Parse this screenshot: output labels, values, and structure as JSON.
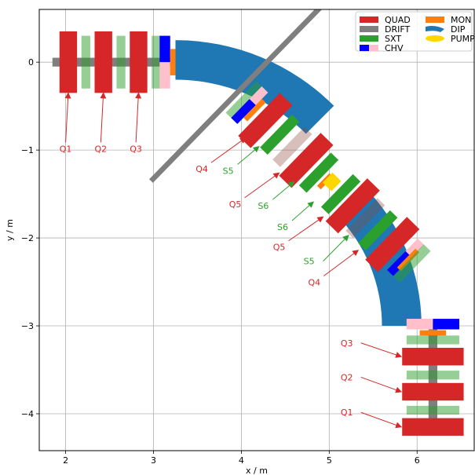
{
  "chart_data": {
    "type": "beamline-layout",
    "xlabel": "x / m",
    "ylabel": "y / m",
    "xlim": [
      1.7,
      6.65
    ],
    "ylim": [
      -4.42,
      0.6
    ],
    "xticks": [
      2,
      3,
      4,
      5,
      6
    ],
    "yticks": [
      0,
      -1,
      -2,
      -3,
      -4
    ],
    "grid": true,
    "legend_position": "top-right",
    "colors": {
      "QUAD": "#d62728",
      "DRIFT": "#7f7f7f",
      "SXT": "#2ca02c",
      "CHV_a": "#0000ff",
      "CHV_b": "#ffc0cb",
      "MON": "#ff7f0e",
      "DIP": "#1f77b4",
      "PUMP": "#ffd700",
      "label_red": "#d62728",
      "label_green": "#2ca02c"
    },
    "legend": [
      {
        "name": "QUAD",
        "kind": "QUAD"
      },
      {
        "name": "DRIFT",
        "kind": "DRIFT"
      },
      {
        "name": "SXT",
        "kind": "SXT"
      },
      {
        "name": "CHV",
        "kind": "CHV"
      },
      {
        "name": "MON",
        "kind": "MON"
      },
      {
        "name": "DIP",
        "kind": "DIP"
      },
      {
        "name": "PUMP",
        "kind": "PUMP"
      }
    ],
    "dipoles": [
      {
        "center": [
          3.25,
          -2.3
        ],
        "r_inner": 2.1,
        "r_outer": 2.55,
        "start_angle_deg": 90,
        "end_angle_deg": 45
      },
      {
        "center": [
          3.8,
          -3.0
        ],
        "r_inner": 1.8,
        "r_outer": 2.25,
        "start_angle_deg": 45,
        "end_angle_deg": 0
      }
    ],
    "top_line": {
      "y": 0,
      "drift_range": [
        1.85,
        3.25
      ],
      "elements": [
        {
          "kind": "QUAD",
          "x": 2.03,
          "length": 0.2,
          "width": 0.7
        },
        {
          "kind": "SXT",
          "x": 2.23,
          "length": 0.1,
          "width": 0.6,
          "alpha": 0.5
        },
        {
          "kind": "QUAD",
          "x": 2.43,
          "length": 0.2,
          "width": 0.7
        },
        {
          "kind": "SXT",
          "x": 2.63,
          "length": 0.1,
          "width": 0.6,
          "alpha": 0.5
        },
        {
          "kind": "QUAD",
          "x": 2.83,
          "length": 0.2,
          "width": 0.7
        },
        {
          "kind": "SXT",
          "x": 3.03,
          "length": 0.1,
          "width": 0.6,
          "alpha": 0.5
        },
        {
          "kind": "CHV_a",
          "x": 3.13,
          "length": 0.12,
          "width": 0.3,
          "offset": 0.15
        },
        {
          "kind": "CHV_b",
          "x": 3.13,
          "length": 0.12,
          "width": 0.3,
          "offset": -0.15
        },
        {
          "kind": "MON",
          "x": 3.22,
          "length": 0.06,
          "width": 0.3,
          "offset": 0
        }
      ]
    },
    "diagonal_line": {
      "start": [
        3.95,
        -0.35
      ],
      "end": [
        5.95,
        -2.3
      ],
      "elements": [
        {
          "kind": "DRIFT",
          "s": 0.0,
          "length": 2.8,
          "width": 0.06
        },
        {
          "kind": "SXT",
          "s": 0.12,
          "length": 0.5,
          "width": 0.11,
          "alpha": 0.5
        },
        {
          "kind": "CHV_b",
          "s": 0.2,
          "length": 0.3,
          "width": 0.1,
          "offset": -0.1
        },
        {
          "kind": "CHV_a",
          "s": 0.2,
          "length": 0.3,
          "width": 0.1,
          "offset": 0.1
        },
        {
          "kind": "MON",
          "s": 0.28,
          "length": 0.3,
          "width": 0.06,
          "offset": 0
        },
        {
          "kind": "QUAD",
          "s": 0.45,
          "length": 0.68,
          "width": 0.2
        },
        {
          "kind": "SXT",
          "s": 0.68,
          "length": 0.52,
          "width": 0.12
        },
        {
          "kind": "SXT",
          "s": 0.88,
          "length": 0.52,
          "width": 0.12,
          "alpha": 0.35,
          "tint": "#8c4a3b"
        },
        {
          "kind": "QUAD",
          "s": 1.1,
          "length": 0.68,
          "width": 0.2
        },
        {
          "kind": "SXT",
          "s": 1.3,
          "length": 0.52,
          "width": 0.12
        },
        {
          "kind": "MON",
          "s": 1.42,
          "length": 0.2,
          "width": 0.06,
          "offset": 0.02
        },
        {
          "kind": "PUMP",
          "s": 1.48,
          "length": 0.16,
          "width": 0.14,
          "offset": -0.03
        },
        {
          "kind": "SXT",
          "s": 1.65,
          "length": 0.52,
          "width": 0.12
        },
        {
          "kind": "QUAD",
          "s": 1.84,
          "length": 0.68,
          "width": 0.2
        },
        {
          "kind": "SXT",
          "s": 2.04,
          "length": 0.52,
          "width": 0.12,
          "alpha": 0.35,
          "tint": "#8c4a3b"
        },
        {
          "kind": "SXT",
          "s": 2.24,
          "length": 0.52,
          "width": 0.12
        },
        {
          "kind": "QUAD",
          "s": 2.47,
          "length": 0.68,
          "width": 0.2
        },
        {
          "kind": "CHV_b",
          "s": 2.68,
          "length": 0.3,
          "width": 0.1,
          "offset": -0.1
        },
        {
          "kind": "CHV_a",
          "s": 2.68,
          "length": 0.3,
          "width": 0.1,
          "offset": 0.1
        },
        {
          "kind": "MON",
          "s": 2.72,
          "length": 0.3,
          "width": 0.06,
          "offset": 0
        },
        {
          "kind": "SXT",
          "s": 2.78,
          "length": 0.5,
          "width": 0.11,
          "alpha": 0.5
        }
      ]
    },
    "bottom_line": {
      "x": 6.18,
      "drift_range": [
        -2.95,
        -4.2
      ],
      "elements": [
        {
          "kind": "CHV_b",
          "y": -2.98,
          "length": 0.12,
          "width": 0.3,
          "offset": -0.15
        },
        {
          "kind": "CHV_a",
          "y": -2.98,
          "length": 0.12,
          "width": 0.3,
          "offset": 0.15
        },
        {
          "kind": "MON",
          "y": -3.08,
          "length": 0.06,
          "width": 0.3,
          "offset": 0
        },
        {
          "kind": "SXT",
          "y": -3.16,
          "length": 0.1,
          "width": 0.6,
          "alpha": 0.5
        },
        {
          "kind": "QUAD",
          "y": -3.35,
          "length": 0.2,
          "width": 0.7
        },
        {
          "kind": "SXT",
          "y": -3.56,
          "length": 0.1,
          "width": 0.6,
          "alpha": 0.5
        },
        {
          "kind": "QUAD",
          "y": -3.75,
          "length": 0.2,
          "width": 0.7
        },
        {
          "kind": "SXT",
          "y": -3.96,
          "length": 0.1,
          "width": 0.6,
          "alpha": 0.5
        },
        {
          "kind": "QUAD",
          "y": -4.15,
          "length": 0.2,
          "width": 0.7
        }
      ]
    },
    "annotations": [
      {
        "text": "Q1",
        "color": "red",
        "text_xy": [
          2.0,
          -1.02
        ],
        "arrow_to": [
          2.03,
          -0.35
        ]
      },
      {
        "text": "Q2",
        "color": "red",
        "text_xy": [
          2.4,
          -1.02
        ],
        "arrow_to": [
          2.43,
          -0.35
        ]
      },
      {
        "text": "Q3",
        "color": "red",
        "text_xy": [
          2.8,
          -1.02
        ],
        "arrow_to": [
          2.83,
          -0.35
        ]
      },
      {
        "text": "Q4",
        "color": "red",
        "text_xy": [
          3.55,
          -1.25
        ],
        "arrow_to": [
          4.05,
          -0.86
        ]
      },
      {
        "text": "S5",
        "color": "green",
        "text_xy": [
          3.85,
          -1.27
        ],
        "arrow_to": [
          4.2,
          -0.96
        ]
      },
      {
        "text": "Q5",
        "color": "red",
        "text_xy": [
          3.93,
          -1.65
        ],
        "arrow_to": [
          4.43,
          -1.26
        ]
      },
      {
        "text": "S6",
        "color": "green",
        "text_xy": [
          4.25,
          -1.67
        ],
        "arrow_to": [
          4.6,
          -1.36
        ]
      },
      {
        "text": "S6",
        "color": "green",
        "text_xy": [
          4.47,
          -1.91
        ],
        "arrow_to": [
          4.82,
          -1.59
        ]
      },
      {
        "text": "Q5",
        "color": "red",
        "text_xy": [
          4.43,
          -2.14
        ],
        "arrow_to": [
          4.93,
          -1.76
        ]
      },
      {
        "text": "S5",
        "color": "green",
        "text_xy": [
          4.77,
          -2.3
        ],
        "arrow_to": [
          5.22,
          -1.97
        ]
      },
      {
        "text": "Q4",
        "color": "red",
        "text_xy": [
          4.83,
          -2.54
        ],
        "arrow_to": [
          5.33,
          -2.14
        ]
      },
      {
        "text": "Q3",
        "color": "red",
        "text_xy": [
          5.2,
          -3.23
        ],
        "arrow_to": [
          5.82,
          -3.35
        ]
      },
      {
        "text": "Q2",
        "color": "red",
        "text_xy": [
          5.2,
          -3.62
        ],
        "arrow_to": [
          5.82,
          -3.75
        ]
      },
      {
        "text": "Q1",
        "color": "red",
        "text_xy": [
          5.2,
          -4.02
        ],
        "arrow_to": [
          5.82,
          -4.15
        ]
      }
    ]
  }
}
